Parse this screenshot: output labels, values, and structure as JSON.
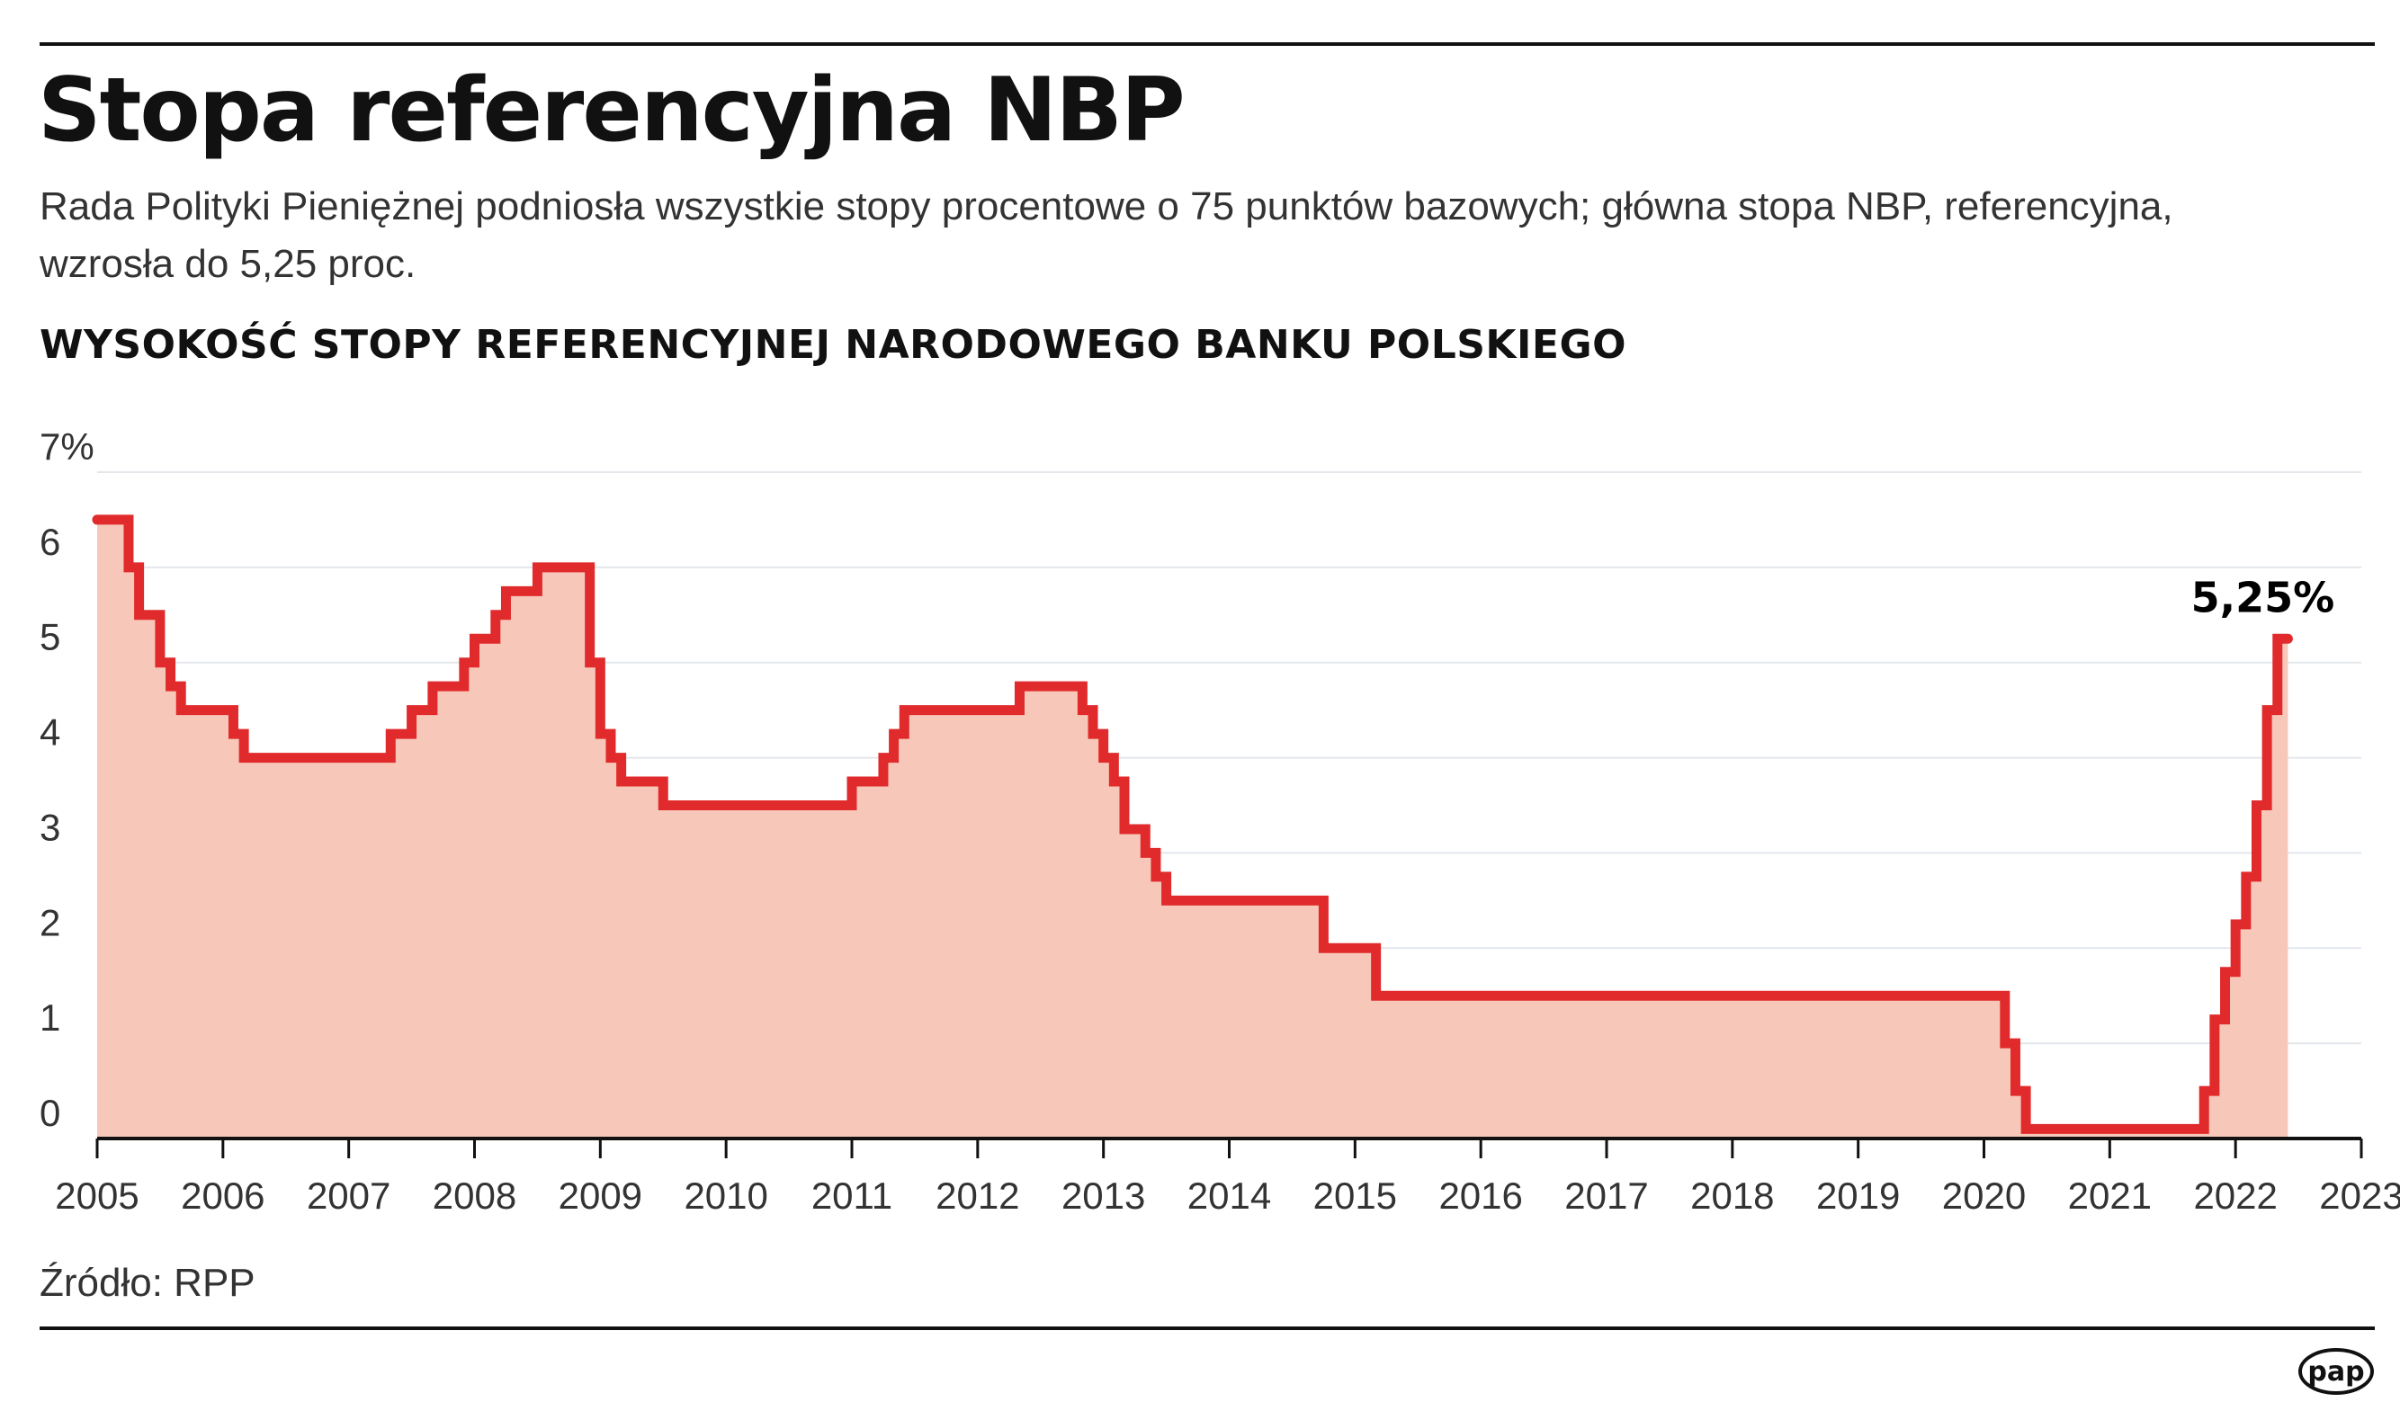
{
  "header": {
    "title": "Stopa referencyjna NBP",
    "subtitle": "Rada Polityki Pieniężnej podniosła wszystkie stopy procentowe o 75 punktów bazowych; główna stopa NBP, referencyjna, wzrosła do 5,25 proc."
  },
  "footer": {
    "source": "Źródło: RPP",
    "logo": "pap"
  },
  "colors": {
    "line": "#e12a2b",
    "fill": "#f7c8b9",
    "grid": "#e3e7ec",
    "axis": "#111111"
  },
  "chart_data": {
    "type": "area",
    "title": "WYSOKOŚĆ STOPY REFERENCYJNEJ NARODOWEGO BANKU POLSKIEGO",
    "xlabel": "",
    "ylabel": "",
    "step": "after",
    "xlim": [
      "2005-01",
      "2023-01"
    ],
    "ylim": [
      0,
      7
    ],
    "grid": true,
    "y_ticks": [
      "0",
      "1",
      "2",
      "3",
      "4",
      "5",
      "6",
      "7%"
    ],
    "x_ticks": [
      "2005",
      "2006",
      "2007",
      "2008",
      "2009",
      "2010",
      "2011",
      "2012",
      "2013",
      "2014",
      "2015",
      "2016",
      "2017",
      "2018",
      "2019",
      "2020",
      "2021",
      "2022",
      "2023"
    ],
    "annotation": "5,25%",
    "points": [
      [
        "2005-01",
        6.5
      ],
      [
        "2005-04",
        6.0
      ],
      [
        "2005-05",
        5.5
      ],
      [
        "2005-07",
        5.0
      ],
      [
        "2005-08",
        4.75
      ],
      [
        "2005-09",
        4.5
      ],
      [
        "2006-02",
        4.25
      ],
      [
        "2006-03",
        4.0
      ],
      [
        "2007-05",
        4.25
      ],
      [
        "2007-07",
        4.5
      ],
      [
        "2007-09",
        4.75
      ],
      [
        "2007-12",
        5.0
      ],
      [
        "2008-01",
        5.25
      ],
      [
        "2008-03",
        5.5
      ],
      [
        "2008-04",
        5.75
      ],
      [
        "2008-07",
        6.0
      ],
      [
        "2008-12",
        5.75
      ],
      [
        "2008-12",
        5.0
      ],
      [
        "2009-01",
        4.25
      ],
      [
        "2009-02",
        4.0
      ],
      [
        "2009-03",
        3.75
      ],
      [
        "2009-07",
        3.5
      ],
      [
        "2011-01",
        3.75
      ],
      [
        "2011-04",
        4.0
      ],
      [
        "2011-05",
        4.25
      ],
      [
        "2011-06",
        4.5
      ],
      [
        "2012-05",
        4.75
      ],
      [
        "2012-11",
        4.5
      ],
      [
        "2012-12",
        4.25
      ],
      [
        "2013-01",
        4.0
      ],
      [
        "2013-02",
        3.75
      ],
      [
        "2013-03",
        3.25
      ],
      [
        "2013-05",
        3.0
      ],
      [
        "2013-06",
        2.75
      ],
      [
        "2013-07",
        2.5
      ],
      [
        "2014-10",
        2.0
      ],
      [
        "2015-03",
        1.5
      ],
      [
        "2020-03",
        1.0
      ],
      [
        "2020-04",
        0.5
      ],
      [
        "2020-05",
        0.1
      ],
      [
        "2021-10",
        0.5
      ],
      [
        "2021-11",
        1.25
      ],
      [
        "2021-12",
        1.75
      ],
      [
        "2022-01",
        2.25
      ],
      [
        "2022-02",
        2.75
      ],
      [
        "2022-03",
        3.5
      ],
      [
        "2022-04",
        4.5
      ],
      [
        "2022-05",
        5.25
      ],
      [
        "2022-06",
        5.25
      ]
    ]
  }
}
